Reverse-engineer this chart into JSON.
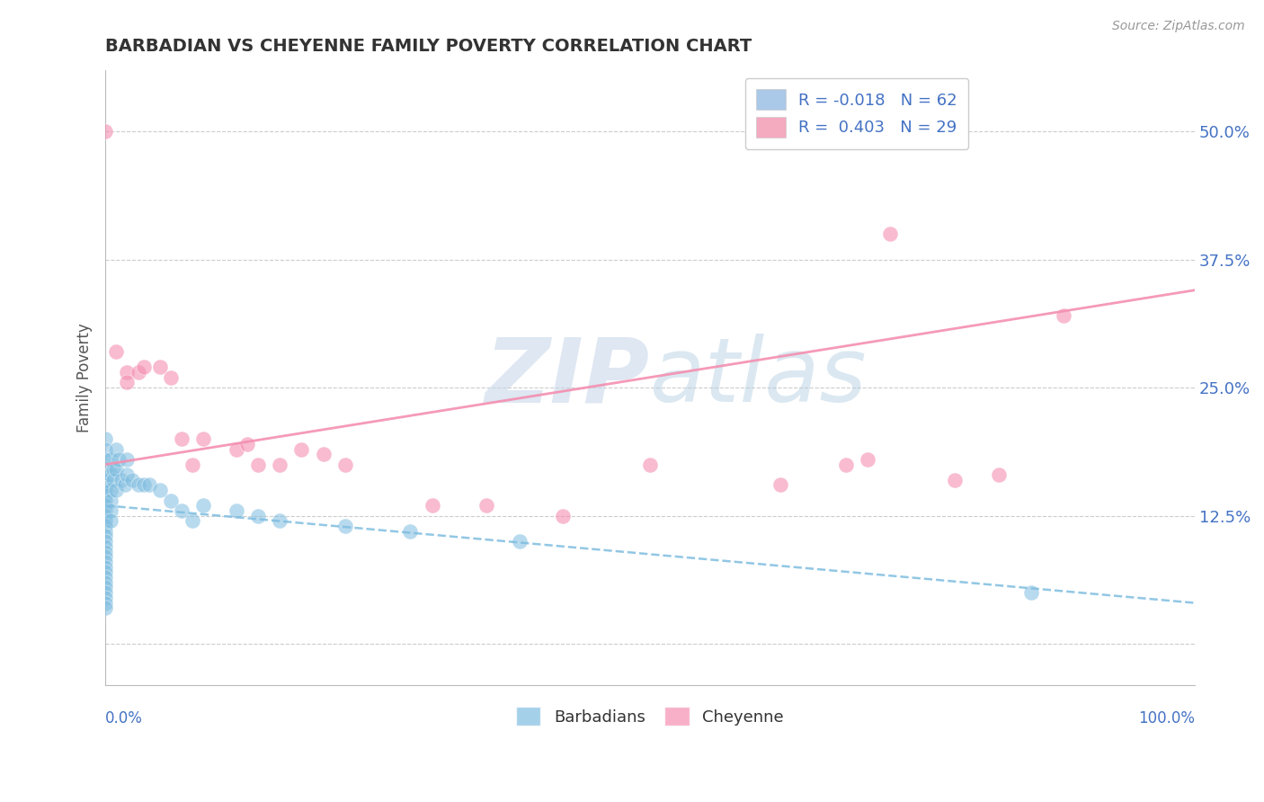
{
  "title": "BARBADIAN VS CHEYENNE FAMILY POVERTY CORRELATION CHART",
  "source": "Source: ZipAtlas.com",
  "ylabel": "Family Poverty",
  "yticks": [
    0.0,
    0.125,
    0.25,
    0.375,
    0.5
  ],
  "ytick_labels": [
    "",
    "12.5%",
    "25.0%",
    "37.5%",
    "50.0%"
  ],
  "xlim": [
    0.0,
    1.0
  ],
  "ylim": [
    -0.04,
    0.56
  ],
  "watermark_text": "ZIPatlas",
  "barbadian_color": "#7fbde0",
  "cheyenne_color": "#f48fb0",
  "trend_barbadian_color": "#7fbde0",
  "trend_cheyenne_color": "#f48fb0",
  "background_color": "#ffffff",
  "grid_color": "#cccccc",
  "title_color": "#333333",
  "axis_label_color": "#555555",
  "tick_label_color": "#4472c4",
  "legend_blue_color": "#aac8e8",
  "legend_pink_color": "#f4aabf",
  "barbadian_x": [
    0.0,
    0.0,
    0.0,
    0.0,
    0.0,
    0.0,
    0.0,
    0.0,
    0.0,
    0.0,
    0.0,
    0.0,
    0.0,
    0.0,
    0.0,
    0.0,
    0.0,
    0.0,
    0.0,
    0.0,
    0.0,
    0.0,
    0.0,
    0.0,
    0.0,
    0.0,
    0.0,
    0.0,
    0.0,
    0.0,
    0.005,
    0.005,
    0.005,
    0.005,
    0.005,
    0.005,
    0.007,
    0.007,
    0.01,
    0.01,
    0.01,
    0.012,
    0.015,
    0.018,
    0.02,
    0.02,
    0.025,
    0.03,
    0.035,
    0.04,
    0.05,
    0.06,
    0.07,
    0.08,
    0.09,
    0.12,
    0.14,
    0.16,
    0.22,
    0.28,
    0.38,
    0.85
  ],
  "barbadian_y": [
    0.2,
    0.19,
    0.18,
    0.17,
    0.16,
    0.155,
    0.15,
    0.145,
    0.14,
    0.135,
    0.13,
    0.125,
    0.12,
    0.115,
    0.11,
    0.105,
    0.1,
    0.095,
    0.09,
    0.085,
    0.08,
    0.075,
    0.07,
    0.065,
    0.06,
    0.055,
    0.05,
    0.045,
    0.04,
    0.035,
    0.18,
    0.165,
    0.15,
    0.14,
    0.13,
    0.12,
    0.17,
    0.16,
    0.19,
    0.17,
    0.15,
    0.18,
    0.16,
    0.155,
    0.18,
    0.165,
    0.16,
    0.155,
    0.155,
    0.155,
    0.15,
    0.14,
    0.13,
    0.12,
    0.135,
    0.13,
    0.125,
    0.12,
    0.115,
    0.11,
    0.1,
    0.05
  ],
  "cheyenne_x": [
    0.0,
    0.01,
    0.02,
    0.02,
    0.03,
    0.035,
    0.05,
    0.06,
    0.07,
    0.08,
    0.09,
    0.12,
    0.13,
    0.14,
    0.16,
    0.18,
    0.2,
    0.22,
    0.3,
    0.35,
    0.42,
    0.5,
    0.62,
    0.68,
    0.7,
    0.72,
    0.78,
    0.82,
    0.88
  ],
  "cheyenne_y": [
    0.5,
    0.285,
    0.265,
    0.255,
    0.265,
    0.27,
    0.27,
    0.26,
    0.2,
    0.175,
    0.2,
    0.19,
    0.195,
    0.175,
    0.175,
    0.19,
    0.185,
    0.175,
    0.135,
    0.135,
    0.125,
    0.175,
    0.155,
    0.175,
    0.18,
    0.4,
    0.16,
    0.165,
    0.32
  ],
  "cheyenne_trend_x0": 0.0,
  "cheyenne_trend_y0": 0.175,
  "cheyenne_trend_x1": 1.0,
  "cheyenne_trend_y1": 0.345,
  "barbadian_trend_x0": 0.0,
  "barbadian_trend_y0": 0.135,
  "barbadian_trend_x1": 1.0,
  "barbadian_trend_y1": 0.04
}
